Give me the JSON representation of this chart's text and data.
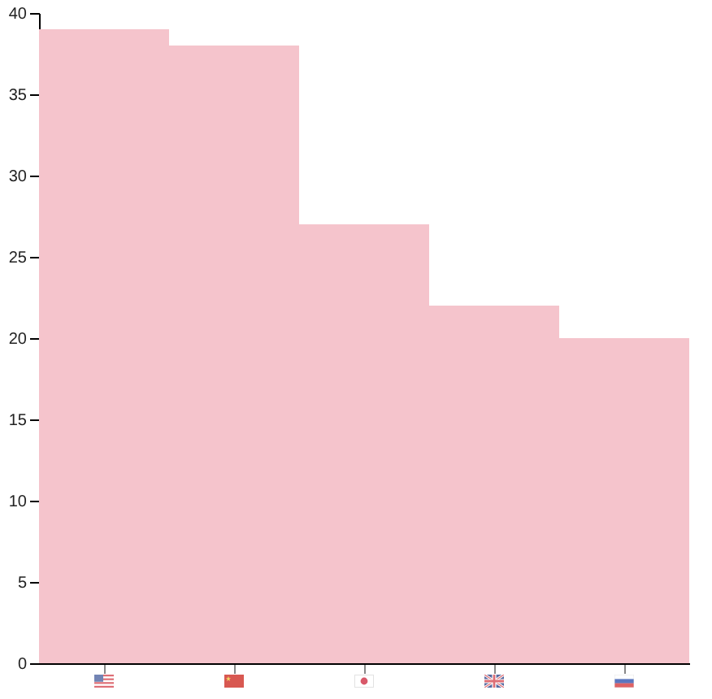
{
  "chart_data": {
    "type": "bar",
    "categories": [
      null,
      null,
      null,
      null,
      null
    ],
    "values": [
      39,
      38,
      27,
      22,
      20
    ],
    "color": "#f5c4cc",
    "ylim": [
      0,
      40
    ],
    "yticks": [
      0,
      5,
      10,
      15,
      20,
      25,
      30,
      35,
      40
    ]
  }
}
